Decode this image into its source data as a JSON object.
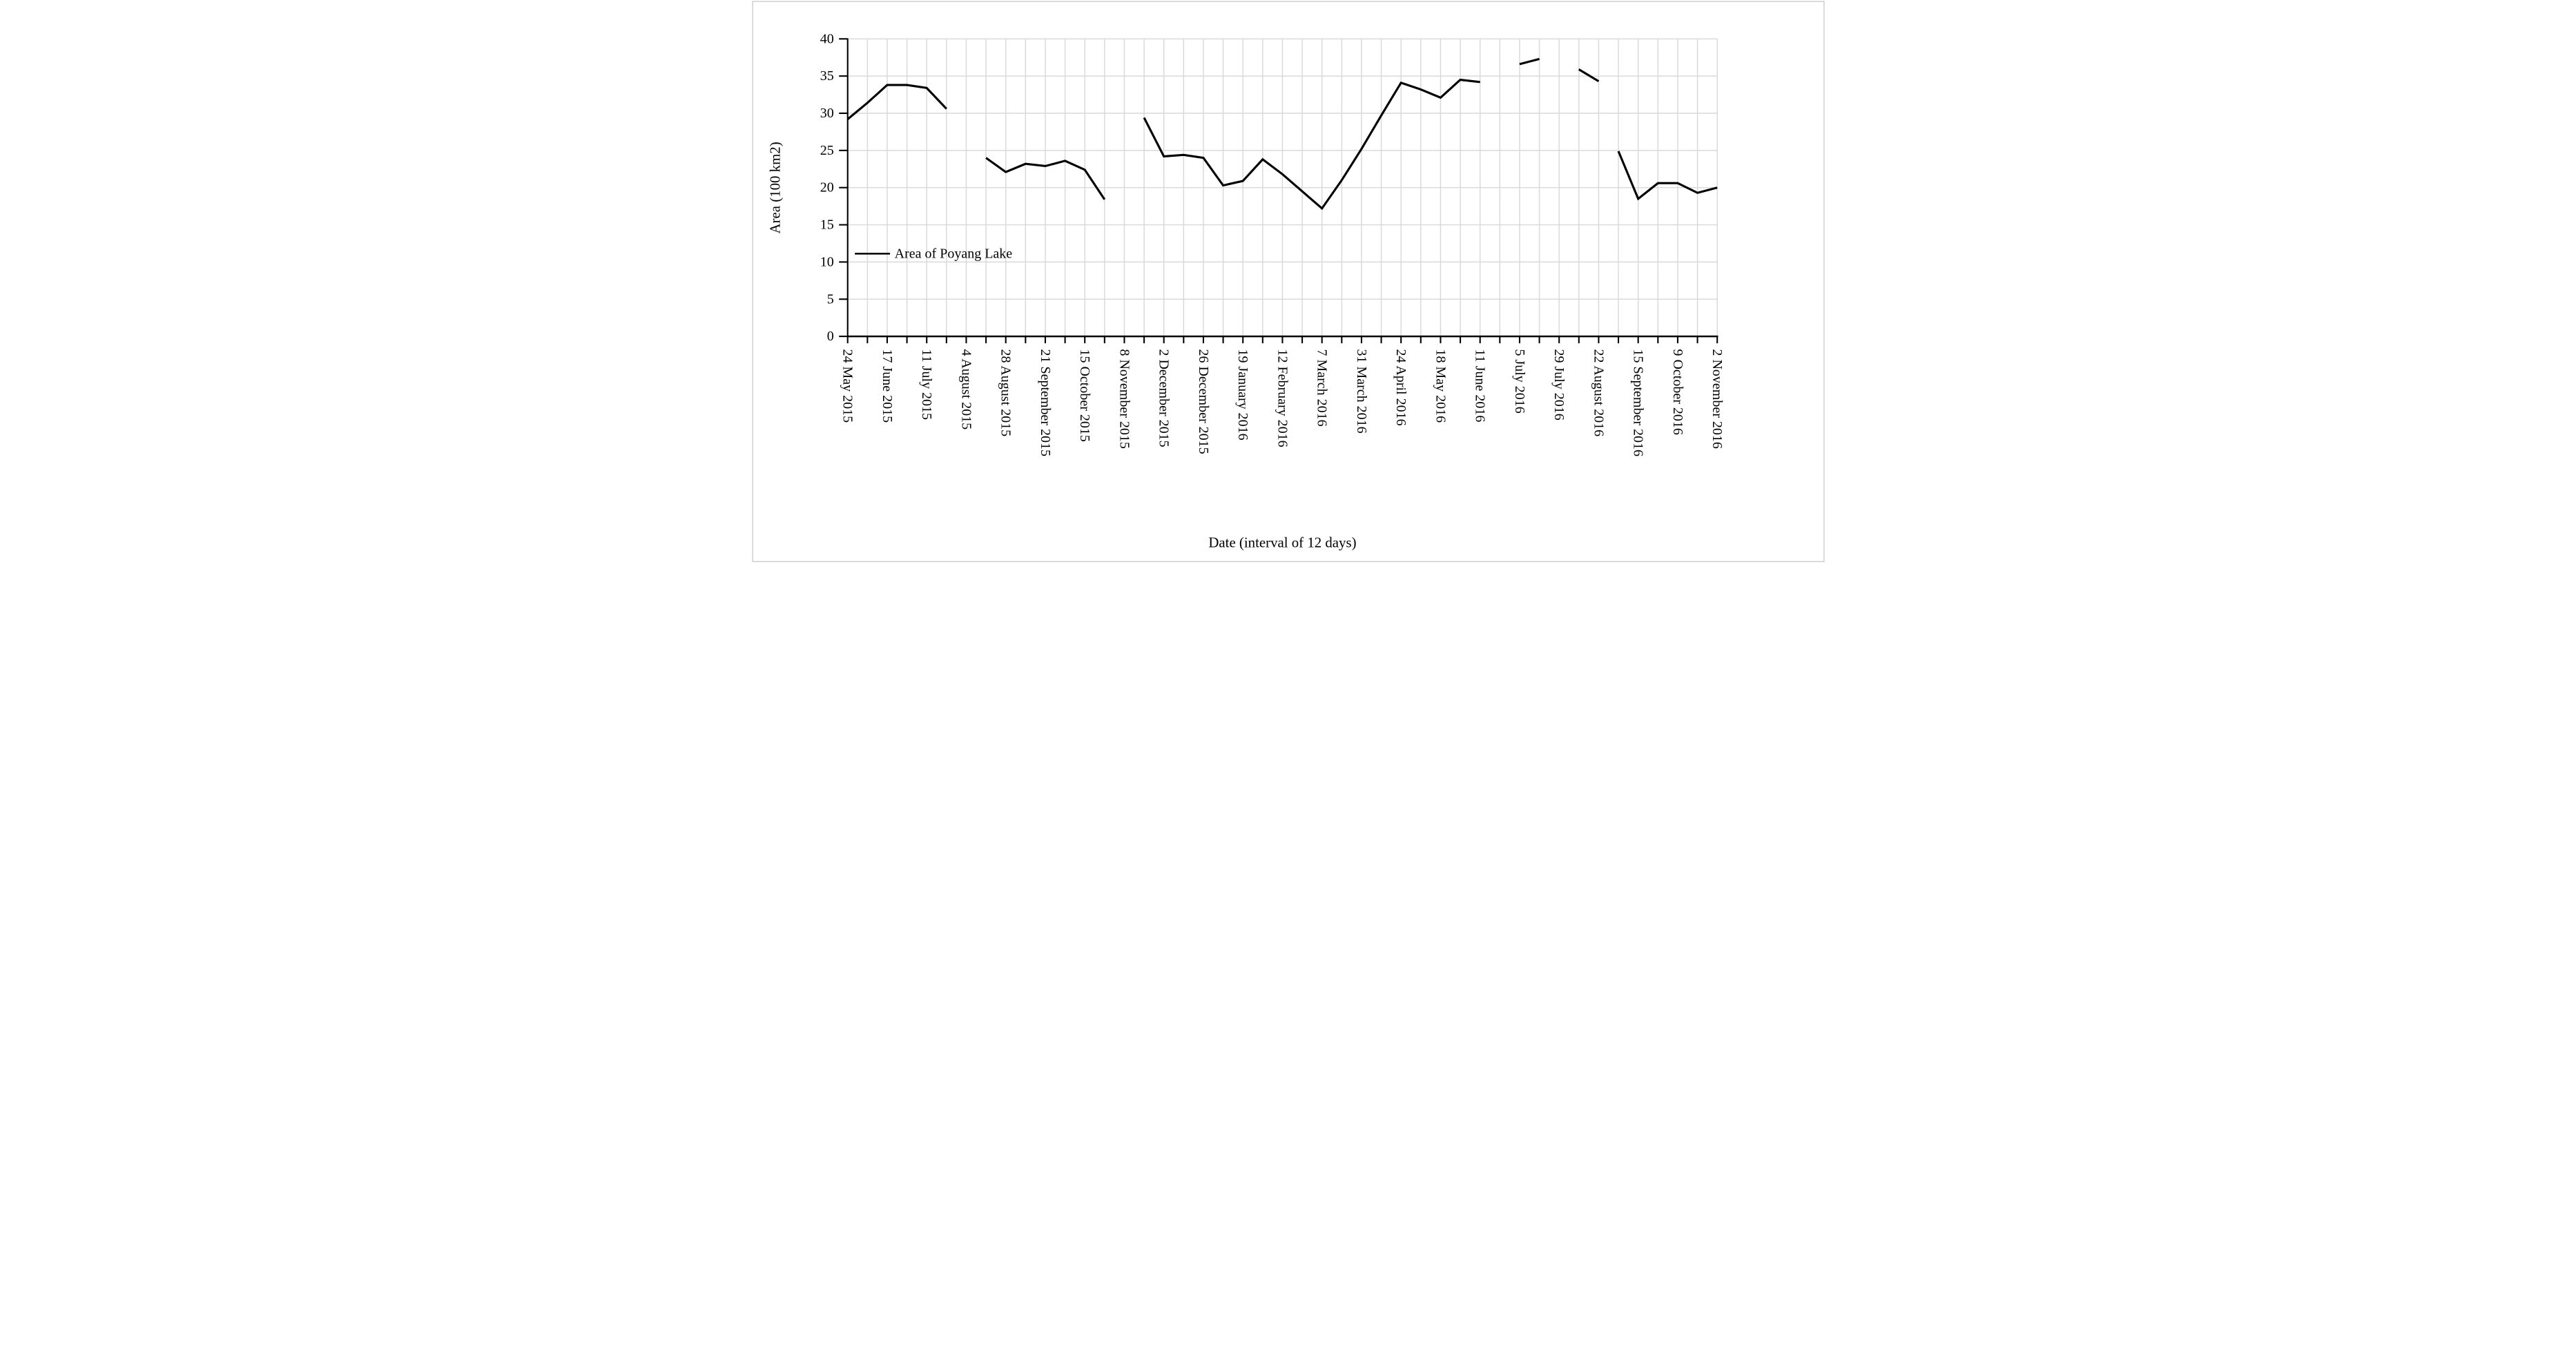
{
  "figure": {
    "background_color": "#ffffff",
    "border_color": "#c6c6c6",
    "line_color": "#000000",
    "grid_color": "#d9d9d9",
    "axis_color": "#000000",
    "text_color": "#000000"
  },
  "chart_data": {
    "type": "line",
    "title": "",
    "xlabel": "Date (interval of 12 days)",
    "ylabel": "Area (100 km2)",
    "legend": {
      "label": "Area of Poyang Lake",
      "position": "inside-left"
    },
    "ylim": [
      0,
      40
    ],
    "y_ticks": [
      0,
      5,
      10,
      15,
      20,
      25,
      30,
      35,
      40
    ],
    "grid": true,
    "n_points": 45,
    "point_interval_days": 12,
    "label_every": 2,
    "x_tick_labels": [
      "24 May 2015",
      "17 June 2015",
      "11 July 2015",
      "4 August 2015",
      "28 August 2015",
      "21 September 2015",
      "15 October 2015",
      "8 November 2015",
      "2 December 2015",
      "26 December 2015",
      "19 January 2016",
      "12 February 2016",
      "7 March 2016",
      "31 March 2016",
      "24 April 2016",
      "18 May 2016",
      "11 June 2016",
      "5 July 2016",
      "29 July 2016",
      "22 August 2016",
      "15 September 2016",
      "9 October 2016",
      "2 November 2016"
    ],
    "series": [
      {
        "name": "Area of Poyang Lake",
        "segments": [
          {
            "start_index": 0,
            "values": [
              29.2,
              31.4,
              33.8,
              33.8,
              33.4,
              30.6
            ]
          },
          {
            "start_index": 7,
            "values": [
              24.0,
              22.1,
              23.2,
              22.9,
              23.6,
              22.4,
              18.4
            ]
          },
          {
            "start_index": 15,
            "values": [
              29.4,
              24.2,
              24.4,
              24.0,
              20.3,
              20.9,
              23.8,
              21.8,
              19.5,
              17.2,
              21.0,
              25.2,
              29.7,
              34.1,
              33.2,
              32.1,
              34.5,
              34.2
            ]
          },
          {
            "start_index": 34,
            "values": [
              36.6,
              37.3
            ]
          },
          {
            "start_index": 37,
            "values": [
              35.9,
              34.3
            ]
          },
          {
            "start_index": 39,
            "values": [
              24.9,
              18.5,
              20.6,
              20.6,
              19.3,
              20.0
            ]
          }
        ]
      }
    ]
  }
}
